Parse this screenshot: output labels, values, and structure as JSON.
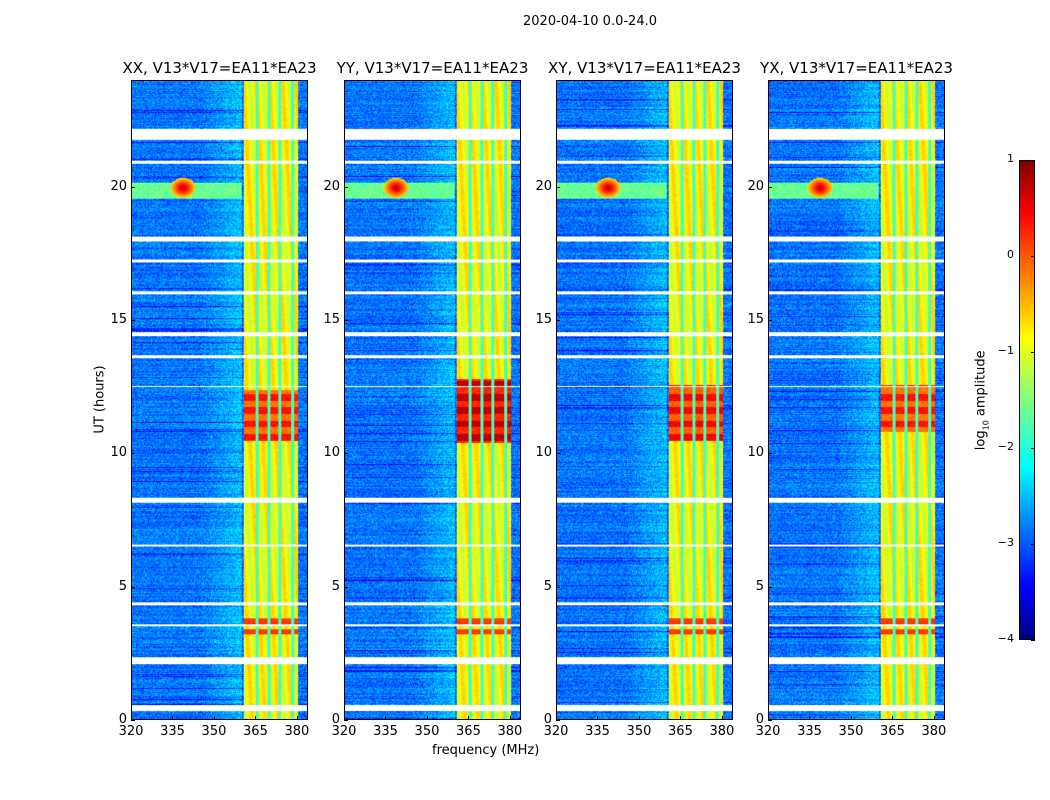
{
  "figure": {
    "suptitle": "2020-04-10 0.0-24.0"
  },
  "chart_data": {
    "type": "heatmap",
    "title": "2020-04-10 0.0-24.0",
    "xlabel": "frequency (MHz)",
    "ylabel": "UT (hours)",
    "xlim": [
      320,
      384
    ],
    "ylim": [
      0,
      24
    ],
    "xticks": [
      320,
      335,
      350,
      365,
      380
    ],
    "yticks": [
      0,
      5,
      10,
      15,
      20
    ],
    "colormap": "jet",
    "colorbar": {
      "label": "log10 amplitude",
      "label_main": "log",
      "label_sub": "10",
      "label_rest": " amplitude",
      "range": [
        -4,
        1
      ],
      "ticks": [
        1,
        0,
        -1,
        -2,
        -3,
        -4
      ]
    },
    "panels": [
      {
        "title": "XX, V13*V17=EA11*EA23",
        "strong_hours": [
          10.5,
          12.4
        ],
        "strong_level": 0.3
      },
      {
        "title": "YY, V13*V17=EA11*EA23",
        "strong_hours": [
          10.4,
          12.8
        ],
        "strong_level": 0.7
      },
      {
        "title": "XY, V13*V17=EA11*EA23",
        "strong_hours": [
          10.5,
          12.6
        ],
        "strong_level": 0.4
      },
      {
        "title": "YX, V13*V17=EA11*EA23",
        "strong_hours": [
          10.8,
          12.6
        ],
        "strong_level": 0.3
      }
    ],
    "features": {
      "background_level": -2.8,
      "rfi_band_mhz": [
        360.5,
        380.5
      ],
      "rfi_band_level": -0.9,
      "rfi_gaps_mhz": [
        365.5,
        370,
        374,
        378.5
      ],
      "burst": {
        "hour": 20,
        "freq_mhz": 338.5,
        "level": 0.8
      },
      "burst_row_hours": [
        19.6,
        20.2
      ],
      "secondary_rfi_hours": [
        3.0,
        3.9
      ],
      "flagged_hours": [
        [
          21.8,
          22.2
        ],
        [
          20.9,
          21.0
        ],
        [
          18.0,
          18.15
        ],
        [
          17.2,
          17.3
        ],
        [
          16.0,
          16.1
        ],
        [
          14.4,
          14.55
        ],
        [
          13.6,
          13.7
        ],
        [
          12.5,
          12.55
        ],
        [
          8.15,
          8.35
        ],
        [
          6.5,
          6.6
        ],
        [
          4.3,
          4.4
        ],
        [
          3.5,
          3.6
        ],
        [
          2.1,
          2.35
        ],
        [
          0.3,
          0.55
        ]
      ]
    }
  }
}
